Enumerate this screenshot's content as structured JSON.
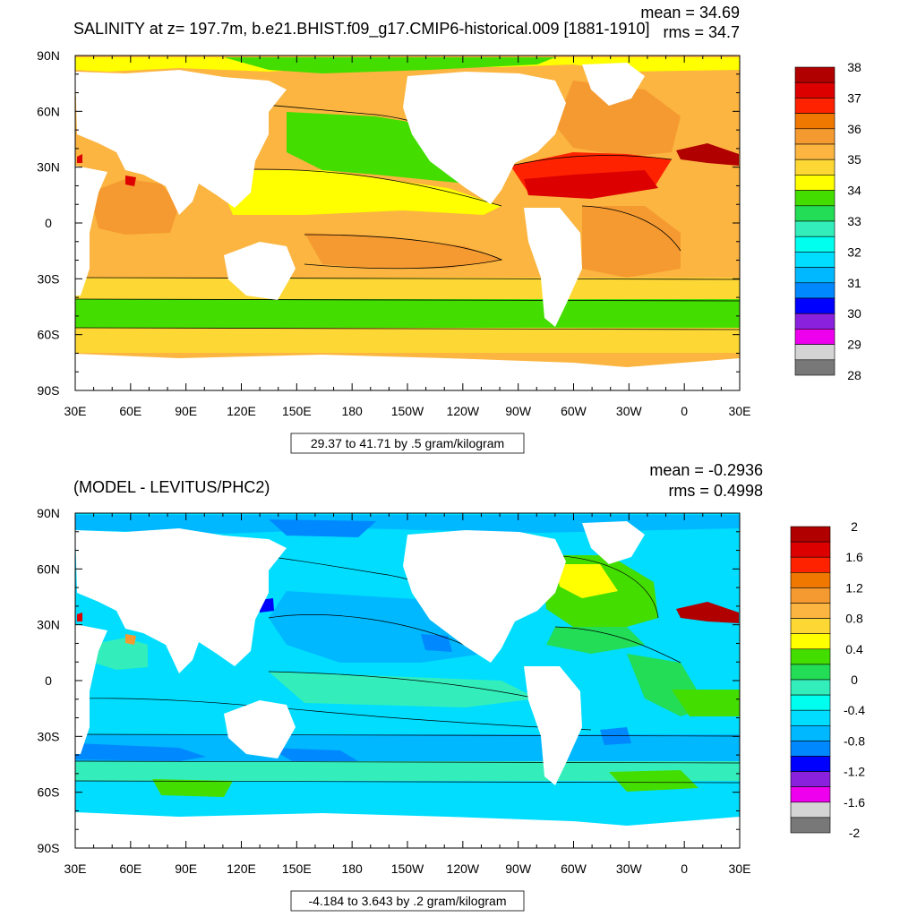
{
  "chart_data": [
    {
      "type": "heatmap",
      "title": "SALINITY at z= 197.7m, b.e21.BHIST.f09_g17.CMIP6-historical.009 [1881-1910]",
      "stats": {
        "mean": "mean = 34.69",
        "rms": "rms = 34.7"
      },
      "info": "29.37 to 41.71 by .5 gram/kilogram",
      "x_ticks": [
        "30E",
        "60E",
        "90E",
        "120E",
        "150E",
        "180",
        "150W",
        "120W",
        "90W",
        "60W",
        "30W",
        "0",
        "30E"
      ],
      "y_ticks": [
        "90N",
        "60N",
        "30N",
        "0",
        "30S",
        "60S",
        "90S"
      ],
      "colorbar": {
        "labels": [
          "38",
          "37",
          "36",
          "35",
          "34",
          "33",
          "32",
          "31",
          "30",
          "29",
          "28"
        ],
        "colors": [
          "#b00000",
          "#dd0000",
          "#ff2200",
          "#f07800",
          "#f59a30",
          "#fbb540",
          "#fdd835",
          "#ffff00",
          "#44dd00",
          "#22dd55",
          "#33eebb",
          "#00ffee",
          "#00ddff",
          "#00b8ff",
          "#0088ff",
          "#0000ff",
          "#8a22dd",
          "#ee00ee",
          "#d4d4d4",
          "#787878"
        ]
      }
    },
    {
      "type": "heatmap",
      "title": "(MODEL - LEVITUS/PHC2)",
      "stats": {
        "mean": "mean = -0.2936",
        "rms": "rms = 0.4998"
      },
      "info": "-4.184 to 3.643 by .2 gram/kilogram",
      "x_ticks": [
        "30E",
        "60E",
        "90E",
        "120E",
        "150E",
        "180",
        "150W",
        "120W",
        "90W",
        "60W",
        "30W",
        "0",
        "30E"
      ],
      "y_ticks": [
        "90N",
        "60N",
        "30N",
        "0",
        "30S",
        "60S",
        "90S"
      ],
      "colorbar": {
        "labels": [
          "2",
          "1.6",
          "1.2",
          "0.8",
          "0.4",
          "0",
          "-0.4",
          "-0.8",
          "-1.2",
          "-1.6",
          "-2"
        ],
        "colors": [
          "#b00000",
          "#dd0000",
          "#ff2200",
          "#f07800",
          "#f59a30",
          "#fbb540",
          "#fdd835",
          "#ffff00",
          "#44dd00",
          "#22dd55",
          "#33eebb",
          "#00ffee",
          "#00ddff",
          "#00b8ff",
          "#0088ff",
          "#0000ff",
          "#8a22dd",
          "#ee00ee",
          "#d4d4d4",
          "#787878"
        ]
      }
    }
  ]
}
